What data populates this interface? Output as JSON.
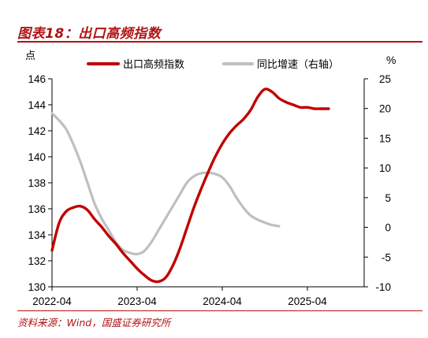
{
  "figure_title": "图表18：出口高频指数",
  "source_note": "资料来源：Wind，国盛证券研究所",
  "colors": {
    "accent": "#b01313",
    "primary_series": "#c00000",
    "secondary_series": "#bfbfbf",
    "axis": "#000000"
  },
  "chart_data": {
    "type": "line",
    "title": "",
    "left_axis": {
      "unit_label": "点",
      "range": [
        130,
        146
      ],
      "ticks": [
        "130",
        "132",
        "134",
        "136",
        "138",
        "140",
        "142",
        "144",
        "146"
      ]
    },
    "right_axis": {
      "unit_label": "%",
      "range": [
        -10,
        25
      ],
      "ticks": [
        "-10",
        "-5",
        "0",
        "5",
        "10",
        "15",
        "20",
        "25"
      ]
    },
    "x_axis": {
      "range": [
        "2022-04",
        "2025-12"
      ],
      "tick_labels": [
        "2022-04",
        "2023-04",
        "2024-04",
        "2025-04"
      ]
    },
    "grid": false,
    "legend_position": "top",
    "series": [
      {
        "name": "出口高频指数",
        "axis": "left",
        "color": "#c00000",
        "points": [
          [
            "2022-04",
            132.8
          ],
          [
            "2022-05",
            134.9
          ],
          [
            "2022-06",
            135.8
          ],
          [
            "2022-07",
            136.1
          ],
          [
            "2022-08",
            136.2
          ],
          [
            "2022-09",
            135.9
          ],
          [
            "2022-10",
            135.2
          ],
          [
            "2022-11",
            134.6
          ],
          [
            "2022-12",
            133.9
          ],
          [
            "2023-01",
            133.3
          ],
          [
            "2023-02",
            132.6
          ],
          [
            "2023-03",
            132.0
          ],
          [
            "2023-04",
            131.4
          ],
          [
            "2023-05",
            130.9
          ],
          [
            "2023-06",
            130.5
          ],
          [
            "2023-07",
            130.4
          ],
          [
            "2023-08",
            130.7
          ],
          [
            "2023-09",
            131.6
          ],
          [
            "2023-10",
            132.9
          ],
          [
            "2023-11",
            134.5
          ],
          [
            "2023-12",
            136.1
          ],
          [
            "2024-01",
            137.5
          ],
          [
            "2024-02",
            138.8
          ],
          [
            "2024-03",
            140.0
          ],
          [
            "2024-04",
            141.0
          ],
          [
            "2024-05",
            141.8
          ],
          [
            "2024-06",
            142.4
          ],
          [
            "2024-07",
            142.9
          ],
          [
            "2024-08",
            143.6
          ],
          [
            "2024-09",
            144.6
          ],
          [
            "2024-10",
            145.2
          ],
          [
            "2024-11",
            145.0
          ],
          [
            "2024-12",
            144.5
          ],
          [
            "2025-01",
            144.2
          ],
          [
            "2025-02",
            144.0
          ],
          [
            "2025-03",
            143.8
          ],
          [
            "2025-04",
            143.8
          ],
          [
            "2025-05",
            143.7
          ],
          [
            "2025-06",
            143.7
          ],
          [
            "2025-07",
            143.7
          ]
        ]
      },
      {
        "name": "同比增速（右轴）",
        "axis": "right",
        "color": "#bfbfbf",
        "points": [
          [
            "2022-04",
            19.2
          ],
          [
            "2022-05",
            18.0
          ],
          [
            "2022-06",
            16.5
          ],
          [
            "2022-07",
            14.0
          ],
          [
            "2022-08",
            11.0
          ],
          [
            "2022-09",
            7.5
          ],
          [
            "2022-10",
            4.0
          ],
          [
            "2022-11",
            1.5
          ],
          [
            "2022-12",
            -0.5
          ],
          [
            "2023-01",
            -2.5
          ],
          [
            "2023-02",
            -3.8
          ],
          [
            "2023-03",
            -4.3
          ],
          [
            "2023-04",
            -4.5
          ],
          [
            "2023-05",
            -4.0
          ],
          [
            "2023-06",
            -2.5
          ],
          [
            "2023-07",
            -0.5
          ],
          [
            "2023-08",
            1.5
          ],
          [
            "2023-09",
            3.5
          ],
          [
            "2023-10",
            5.5
          ],
          [
            "2023-11",
            7.5
          ],
          [
            "2023-12",
            8.6
          ],
          [
            "2024-01",
            9.1
          ],
          [
            "2024-02",
            9.2
          ],
          [
            "2024-03",
            9.0
          ],
          [
            "2024-04",
            8.4
          ],
          [
            "2024-05",
            7.0
          ],
          [
            "2024-06",
            5.0
          ],
          [
            "2024-07",
            3.3
          ],
          [
            "2024-08",
            2.0
          ],
          [
            "2024-09",
            1.3
          ],
          [
            "2024-10",
            0.8
          ],
          [
            "2024-11",
            0.4
          ],
          [
            "2024-12",
            0.2
          ]
        ]
      }
    ]
  }
}
